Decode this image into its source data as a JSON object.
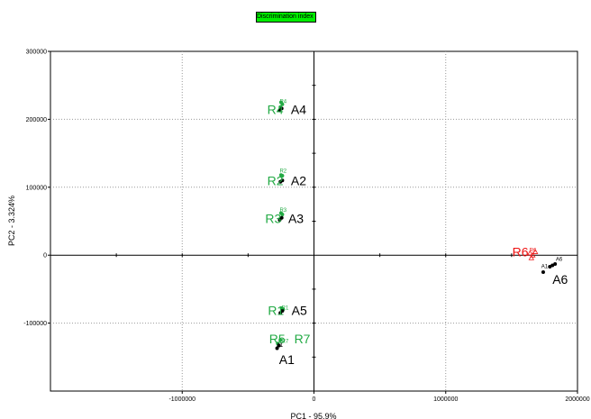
{
  "badge": {
    "text": "Discrimination index = 98",
    "color": "#00ee00"
  },
  "chart_data": {
    "type": "scatter",
    "xlabel": "PC1 - 95.9%",
    "ylabel": "PC2 - 3.324%",
    "xlim": [
      -2000000,
      2000000
    ],
    "ylim": [
      -200000,
      300000
    ],
    "x_ticks": [
      -1000000,
      0,
      1000000,
      2000000
    ],
    "x_tick_labels": [
      "-1000000",
      "0",
      "1000000",
      "2000000"
    ],
    "y_ticks": [
      -100000,
      0,
      100000,
      200000,
      300000
    ],
    "y_tick_labels": [
      "-100000",
      "0",
      "100000",
      "200000",
      "300000"
    ],
    "grid": "dotted",
    "colors": {
      "R_group": "#22aa44",
      "A_group": "#000000",
      "R6": "#ee1111",
      "A6": "#000000"
    },
    "point_groups": [
      {
        "name": "R4",
        "color": "#22aa44",
        "points": [
          [
            -250000,
            225000
          ],
          [
            -240000,
            222000
          ],
          [
            -255000,
            218000
          ]
        ]
      },
      {
        "name": "A4",
        "color": "#000000",
        "points": [
          [
            -260000,
            213000
          ],
          [
            -245000,
            216000
          ]
        ]
      },
      {
        "name": "R2",
        "color": "#22aa44",
        "points": [
          [
            -250000,
            118000
          ],
          [
            -240000,
            117000
          ]
        ]
      },
      {
        "name": "A2",
        "color": "#000000",
        "points": [
          [
            -255000,
            108000
          ],
          [
            -240000,
            110000
          ]
        ]
      },
      {
        "name": "R3",
        "color": "#22aa44",
        "points": [
          [
            -250000,
            62000
          ],
          [
            -240000,
            60000
          ]
        ]
      },
      {
        "name": "A3",
        "color": "#000000",
        "points": [
          [
            -260000,
            52000
          ],
          [
            -245000,
            55000
          ]
        ]
      },
      {
        "name": "R1",
        "color": "#22aa44",
        "points": [
          [
            -245000,
            -78000
          ],
          [
            -235000,
            -80000
          ]
        ]
      },
      {
        "name": "A5",
        "color": "#000000",
        "points": [
          [
            -255000,
            -85000
          ],
          [
            -240000,
            -82000
          ]
        ]
      },
      {
        "name": "R5",
        "color": "#22aa44",
        "points": [
          [
            -275000,
            -130000
          ]
        ]
      },
      {
        "name": "R7",
        "color": "#22aa44",
        "points": [
          [
            -255000,
            -125000
          ]
        ]
      },
      {
        "name": "A1",
        "color": "#000000",
        "points": [
          [
            -280000,
            -137000
          ],
          [
            -265000,
            -133000
          ]
        ]
      },
      {
        "name": "R6",
        "color": "#ee1111",
        "points": [
          [
            1640000,
            3000
          ],
          [
            1660000,
            0
          ],
          [
            1650000,
            -4000
          ],
          [
            1680000,
            5000
          ]
        ]
      },
      {
        "name": "A6",
        "color": "#000000",
        "points": [
          [
            1740000,
            -25000
          ],
          [
            1790000,
            -17000
          ],
          [
            1830000,
            -13000
          ],
          [
            1810000,
            -15000
          ]
        ]
      }
    ],
    "labels": [
      {
        "text": "R4",
        "x": -355000,
        "y": 213000,
        "color": "#22aa44",
        "size": "big"
      },
      {
        "text": "A4",
        "x": -175000,
        "y": 213000,
        "color": "#000000",
        "size": "big"
      },
      {
        "text": "R2",
        "x": -355000,
        "y": 108000,
        "color": "#22aa44",
        "size": "big"
      },
      {
        "text": "A2",
        "x": -175000,
        "y": 108000,
        "color": "#000000",
        "size": "big"
      },
      {
        "text": "R3",
        "x": -370000,
        "y": 52000,
        "color": "#22aa44",
        "size": "big"
      },
      {
        "text": "A3",
        "x": -195000,
        "y": 52000,
        "color": "#000000",
        "size": "big"
      },
      {
        "text": "R1",
        "x": -350000,
        "y": -83000,
        "color": "#22aa44",
        "size": "big"
      },
      {
        "text": "A5",
        "x": -170000,
        "y": -83000,
        "color": "#000000",
        "size": "big"
      },
      {
        "text": "R5",
        "x": -340000,
        "y": -125000,
        "color": "#22aa44",
        "size": "big"
      },
      {
        "text": "R7",
        "x": -150000,
        "y": -125000,
        "color": "#22aa44",
        "size": "big"
      },
      {
        "text": "A1",
        "x": -265000,
        "y": -155000,
        "color": "#000000",
        "size": "big"
      },
      {
        "text": "R6",
        "x": 1505000,
        "y": 3000,
        "color": "#ee1111",
        "size": "big"
      },
      {
        "text": "A6",
        "x": 1810000,
        "y": -37000,
        "color": "#000000",
        "size": "big"
      },
      {
        "text": "R4",
        "x": -260000,
        "y": 226000,
        "color": "#22aa44",
        "size": "small"
      },
      {
        "text": "R2",
        "x": -260000,
        "y": 124000,
        "color": "#22aa44",
        "size": "small"
      },
      {
        "text": "R3",
        "x": -260000,
        "y": 66000,
        "color": "#22aa44",
        "size": "small"
      },
      {
        "text": "R1",
        "x": -245000,
        "y": -78000,
        "color": "#22aa44",
        "size": "small"
      },
      {
        "text": "R7",
        "x": -245000,
        "y": -127000,
        "color": "#22aa44",
        "size": "small"
      },
      {
        "text": "A1",
        "x": -285000,
        "y": -133000,
        "color": "#000000",
        "size": "small"
      },
      {
        "text": "R6",
        "x": 1635000,
        "y": 7000,
        "color": "#ee1111",
        "size": "small"
      },
      {
        "text": "A6",
        "x": 1835000,
        "y": -6000,
        "color": "#000000",
        "size": "small"
      },
      {
        "text": "A1",
        "x": 1725000,
        "y": -17000,
        "color": "#000000",
        "size": "small"
      }
    ]
  }
}
